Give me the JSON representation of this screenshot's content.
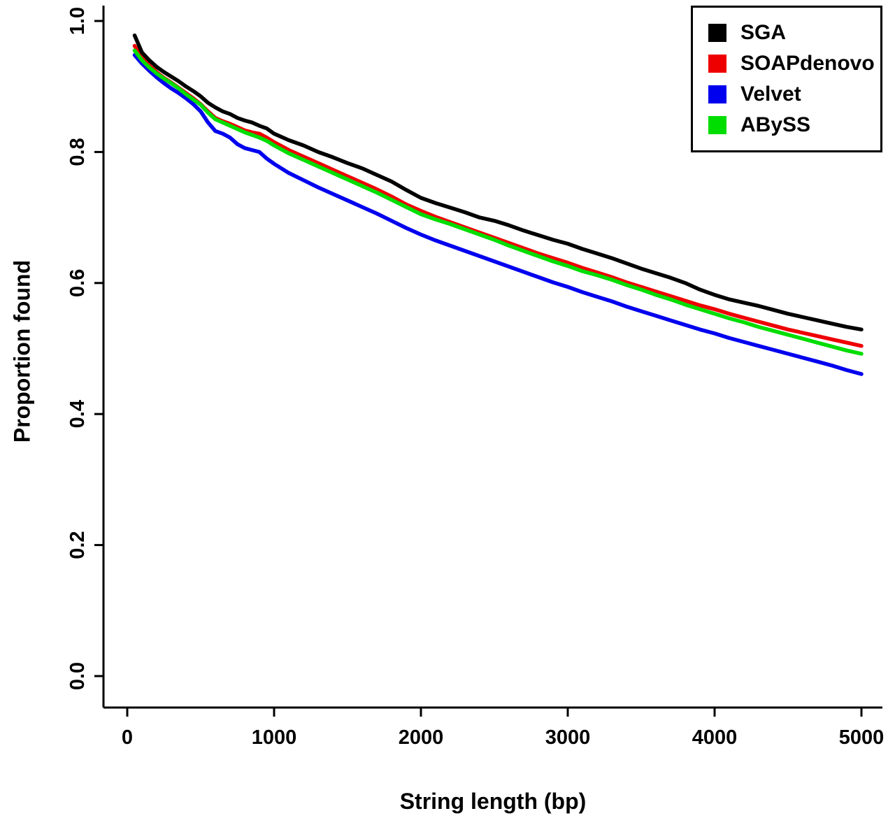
{
  "chart_data": {
    "type": "line",
    "title": "",
    "xlabel": "String length (bp)",
    "ylabel": "Proportion found",
    "xlim": [
      0,
      5000
    ],
    "ylim": [
      0.0,
      1.0
    ],
    "x_ticks": [
      0,
      1000,
      2000,
      3000,
      4000,
      5000
    ],
    "x_tick_labels": [
      "0",
      "1000",
      "2000",
      "3000",
      "4000",
      "5000"
    ],
    "y_ticks": [
      0.0,
      0.2,
      0.4,
      0.6,
      0.8,
      1.0
    ],
    "y_tick_labels": [
      "0.0",
      "0.2",
      "0.4",
      "0.6",
      "0.8",
      "1.0"
    ],
    "grid": "off",
    "legend_position": "top-right",
    "series": [
      {
        "name": "SGA",
        "color": "#000000",
        "points": [
          [
            50,
            0.978
          ],
          [
            100,
            0.952
          ],
          [
            150,
            0.94
          ],
          [
            200,
            0.93
          ],
          [
            250,
            0.922
          ],
          [
            300,
            0.915
          ],
          [
            350,
            0.908
          ],
          [
            400,
            0.9
          ],
          [
            450,
            0.893
          ],
          [
            500,
            0.885
          ],
          [
            550,
            0.875
          ],
          [
            600,
            0.868
          ],
          [
            650,
            0.862
          ],
          [
            700,
            0.858
          ],
          [
            750,
            0.852
          ],
          [
            800,
            0.848
          ],
          [
            850,
            0.845
          ],
          [
            900,
            0.84
          ],
          [
            950,
            0.836
          ],
          [
            1000,
            0.828
          ],
          [
            1100,
            0.818
          ],
          [
            1200,
            0.81
          ],
          [
            1300,
            0.8
          ],
          [
            1400,
            0.792
          ],
          [
            1500,
            0.783
          ],
          [
            1600,
            0.775
          ],
          [
            1700,
            0.765
          ],
          [
            1800,
            0.755
          ],
          [
            1900,
            0.742
          ],
          [
            2000,
            0.73
          ],
          [
            2100,
            0.722
          ],
          [
            2200,
            0.715
          ],
          [
            2300,
            0.708
          ],
          [
            2400,
            0.7
          ],
          [
            2500,
            0.695
          ],
          [
            2600,
            0.688
          ],
          [
            2700,
            0.68
          ],
          [
            2800,
            0.673
          ],
          [
            2900,
            0.666
          ],
          [
            3000,
            0.66
          ],
          [
            3100,
            0.652
          ],
          [
            3200,
            0.645
          ],
          [
            3300,
            0.638
          ],
          [
            3400,
            0.63
          ],
          [
            3500,
            0.622
          ],
          [
            3600,
            0.615
          ],
          [
            3700,
            0.608
          ],
          [
            3800,
            0.6
          ],
          [
            3900,
            0.59
          ],
          [
            4000,
            0.582
          ],
          [
            4100,
            0.575
          ],
          [
            4200,
            0.57
          ],
          [
            4300,
            0.565
          ],
          [
            4400,
            0.559
          ],
          [
            4500,
            0.553
          ],
          [
            4600,
            0.548
          ],
          [
            4700,
            0.543
          ],
          [
            4800,
            0.538
          ],
          [
            4900,
            0.533
          ],
          [
            5000,
            0.529
          ]
        ]
      },
      {
        "name": "SOAPdenovo",
        "color": "#ee0000",
        "points": [
          [
            50,
            0.962
          ],
          [
            100,
            0.944
          ],
          [
            150,
            0.932
          ],
          [
            200,
            0.922
          ],
          [
            250,
            0.913
          ],
          [
            300,
            0.906
          ],
          [
            350,
            0.898
          ],
          [
            400,
            0.89
          ],
          [
            450,
            0.882
          ],
          [
            500,
            0.873
          ],
          [
            550,
            0.862
          ],
          [
            600,
            0.852
          ],
          [
            650,
            0.847
          ],
          [
            700,
            0.843
          ],
          [
            750,
            0.838
          ],
          [
            800,
            0.833
          ],
          [
            850,
            0.83
          ],
          [
            900,
            0.828
          ],
          [
            950,
            0.822
          ],
          [
            1000,
            0.815
          ],
          [
            1100,
            0.803
          ],
          [
            1200,
            0.793
          ],
          [
            1300,
            0.783
          ],
          [
            1400,
            0.773
          ],
          [
            1500,
            0.763
          ],
          [
            1600,
            0.753
          ],
          [
            1700,
            0.743
          ],
          [
            1800,
            0.732
          ],
          [
            1900,
            0.72
          ],
          [
            2000,
            0.71
          ],
          [
            2100,
            0.701
          ],
          [
            2200,
            0.693
          ],
          [
            2300,
            0.685
          ],
          [
            2400,
            0.677
          ],
          [
            2500,
            0.669
          ],
          [
            2600,
            0.661
          ],
          [
            2700,
            0.653
          ],
          [
            2800,
            0.645
          ],
          [
            2900,
            0.638
          ],
          [
            3000,
            0.631
          ],
          [
            3100,
            0.623
          ],
          [
            3200,
            0.616
          ],
          [
            3300,
            0.609
          ],
          [
            3400,
            0.601
          ],
          [
            3500,
            0.594
          ],
          [
            3600,
            0.587
          ],
          [
            3700,
            0.58
          ],
          [
            3800,
            0.573
          ],
          [
            3900,
            0.566
          ],
          [
            4000,
            0.56
          ],
          [
            4100,
            0.553
          ],
          [
            4200,
            0.547
          ],
          [
            4300,
            0.541
          ],
          [
            4400,
            0.535
          ],
          [
            4500,
            0.529
          ],
          [
            4600,
            0.524
          ],
          [
            4700,
            0.519
          ],
          [
            4800,
            0.514
          ],
          [
            4900,
            0.509
          ],
          [
            5000,
            0.504
          ]
        ]
      },
      {
        "name": "Velvet",
        "color": "#0000ee",
        "points": [
          [
            50,
            0.948
          ],
          [
            100,
            0.935
          ],
          [
            150,
            0.924
          ],
          [
            200,
            0.914
          ],
          [
            250,
            0.905
          ],
          [
            300,
            0.897
          ],
          [
            350,
            0.89
          ],
          [
            400,
            0.882
          ],
          [
            450,
            0.873
          ],
          [
            500,
            0.862
          ],
          [
            550,
            0.845
          ],
          [
            600,
            0.832
          ],
          [
            650,
            0.828
          ],
          [
            700,
            0.822
          ],
          [
            750,
            0.812
          ],
          [
            800,
            0.806
          ],
          [
            850,
            0.803
          ],
          [
            900,
            0.8
          ],
          [
            950,
            0.79
          ],
          [
            1000,
            0.782
          ],
          [
            1100,
            0.768
          ],
          [
            1200,
            0.757
          ],
          [
            1300,
            0.746
          ],
          [
            1400,
            0.736
          ],
          [
            1500,
            0.726
          ],
          [
            1600,
            0.716
          ],
          [
            1700,
            0.706
          ],
          [
            1800,
            0.695
          ],
          [
            1900,
            0.684
          ],
          [
            2000,
            0.674
          ],
          [
            2100,
            0.665
          ],
          [
            2200,
            0.657
          ],
          [
            2300,
            0.649
          ],
          [
            2400,
            0.641
          ],
          [
            2500,
            0.633
          ],
          [
            2600,
            0.625
          ],
          [
            2700,
            0.617
          ],
          [
            2800,
            0.609
          ],
          [
            2900,
            0.601
          ],
          [
            3000,
            0.594
          ],
          [
            3100,
            0.586
          ],
          [
            3200,
            0.579
          ],
          [
            3300,
            0.572
          ],
          [
            3400,
            0.564
          ],
          [
            3500,
            0.557
          ],
          [
            3600,
            0.55
          ],
          [
            3700,
            0.543
          ],
          [
            3800,
            0.536
          ],
          [
            3900,
            0.529
          ],
          [
            4000,
            0.523
          ],
          [
            4100,
            0.516
          ],
          [
            4200,
            0.51
          ],
          [
            4300,
            0.504
          ],
          [
            4400,
            0.498
          ],
          [
            4500,
            0.492
          ],
          [
            4600,
            0.486
          ],
          [
            4700,
            0.48
          ],
          [
            4800,
            0.474
          ],
          [
            4900,
            0.467
          ],
          [
            5000,
            0.461
          ]
        ]
      },
      {
        "name": "ABySS",
        "color": "#00dd00",
        "points": [
          [
            50,
            0.955
          ],
          [
            100,
            0.94
          ],
          [
            150,
            0.929
          ],
          [
            200,
            0.92
          ],
          [
            250,
            0.912
          ],
          [
            300,
            0.905
          ],
          [
            350,
            0.897
          ],
          [
            400,
            0.888
          ],
          [
            450,
            0.88
          ],
          [
            500,
            0.872
          ],
          [
            550,
            0.86
          ],
          [
            600,
            0.85
          ],
          [
            650,
            0.845
          ],
          [
            700,
            0.84
          ],
          [
            750,
            0.835
          ],
          [
            800,
            0.83
          ],
          [
            850,
            0.826
          ],
          [
            900,
            0.822
          ],
          [
            950,
            0.817
          ],
          [
            1000,
            0.81
          ],
          [
            1100,
            0.798
          ],
          [
            1200,
            0.788
          ],
          [
            1300,
            0.778
          ],
          [
            1400,
            0.768
          ],
          [
            1500,
            0.758
          ],
          [
            1600,
            0.748
          ],
          [
            1700,
            0.738
          ],
          [
            1800,
            0.727
          ],
          [
            1900,
            0.716
          ],
          [
            2000,
            0.705
          ],
          [
            2100,
            0.697
          ],
          [
            2200,
            0.69
          ],
          [
            2300,
            0.682
          ],
          [
            2400,
            0.674
          ],
          [
            2500,
            0.666
          ],
          [
            2600,
            0.657
          ],
          [
            2700,
            0.649
          ],
          [
            2800,
            0.641
          ],
          [
            2900,
            0.633
          ],
          [
            3000,
            0.626
          ],
          [
            3100,
            0.618
          ],
          [
            3200,
            0.612
          ],
          [
            3300,
            0.605
          ],
          [
            3400,
            0.597
          ],
          [
            3500,
            0.59
          ],
          [
            3600,
            0.582
          ],
          [
            3700,
            0.575
          ],
          [
            3800,
            0.567
          ],
          [
            3900,
            0.56
          ],
          [
            4000,
            0.553
          ],
          [
            4100,
            0.546
          ],
          [
            4200,
            0.54
          ],
          [
            4300,
            0.533
          ],
          [
            4400,
            0.527
          ],
          [
            4500,
            0.521
          ],
          [
            4600,
            0.515
          ],
          [
            4700,
            0.509
          ],
          [
            4800,
            0.503
          ],
          [
            4900,
            0.497
          ],
          [
            5000,
            0.492
          ]
        ]
      }
    ]
  },
  "legend": {
    "items": [
      {
        "label": "SGA"
      },
      {
        "label": "SOAPdenovo"
      },
      {
        "label": "Velvet"
      },
      {
        "label": "ABySS"
      }
    ]
  }
}
